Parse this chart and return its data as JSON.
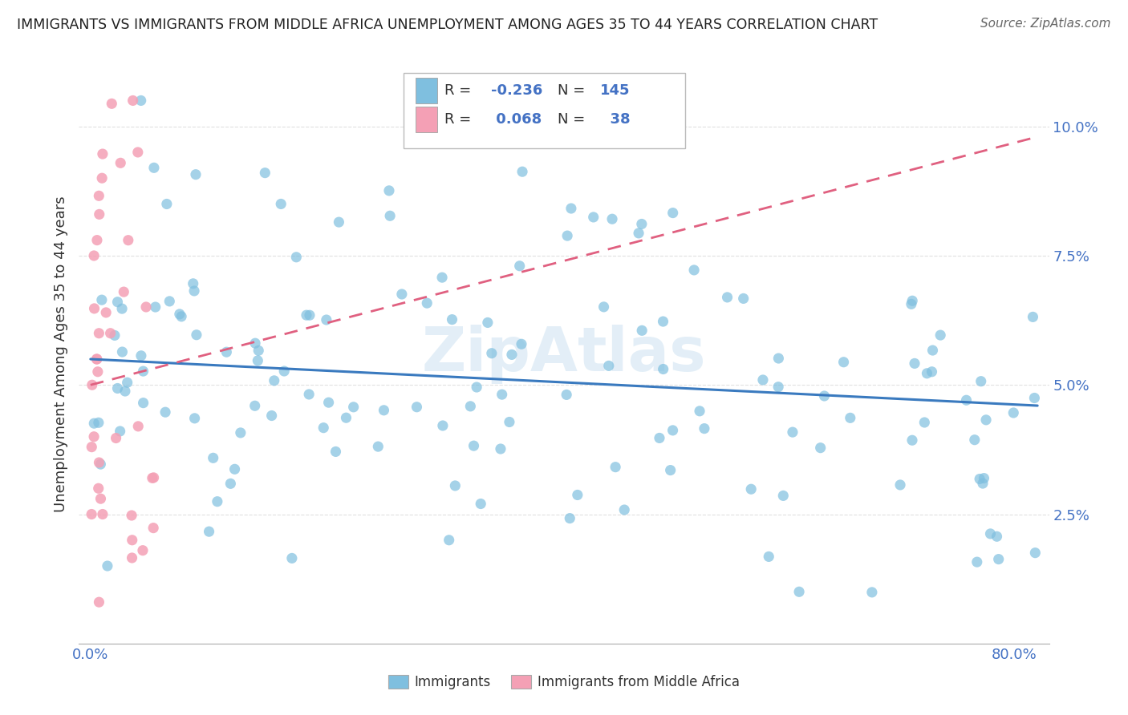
{
  "title": "IMMIGRANTS VS IMMIGRANTS FROM MIDDLE AFRICA UNEMPLOYMENT AMONG AGES 35 TO 44 YEARS CORRELATION CHART",
  "source": "Source: ZipAtlas.com",
  "ylabel": "Unemployment Among Ages 35 to 44 years",
  "xlim": [
    -0.01,
    0.83
  ],
  "ylim": [
    0.0,
    0.112
  ],
  "xtick_positions": [
    0.0,
    0.1,
    0.2,
    0.3,
    0.4,
    0.5,
    0.6,
    0.7,
    0.8
  ],
  "xticklabels": [
    "0.0%",
    "",
    "",
    "",
    "",
    "",
    "",
    "",
    "80.0%"
  ],
  "ytick_positions": [
    0.025,
    0.05,
    0.075,
    0.1
  ],
  "ytick_labels": [
    "2.5%",
    "5.0%",
    "7.5%",
    "10.0%"
  ],
  "blue_R": -0.236,
  "blue_N": 145,
  "pink_R": 0.068,
  "pink_N": 38,
  "blue_color": "#7fbfdf",
  "pink_color": "#f4a0b5",
  "blue_line_color": "#3a7abf",
  "pink_line_color": "#e06080",
  "legend_label_blue": "Immigrants",
  "legend_label_pink": "Immigrants from Middle Africa",
  "blue_trend_start_y": 0.055,
  "blue_trend_end_y": 0.046,
  "pink_trend_start_y": 0.05,
  "pink_trend_end_y": 0.098,
  "watermark": "ZipAtlas",
  "bg_color": "#ffffff",
  "grid_color": "#e0e0e0",
  "tick_color": "#4472c4",
  "label_color": "#333333"
}
